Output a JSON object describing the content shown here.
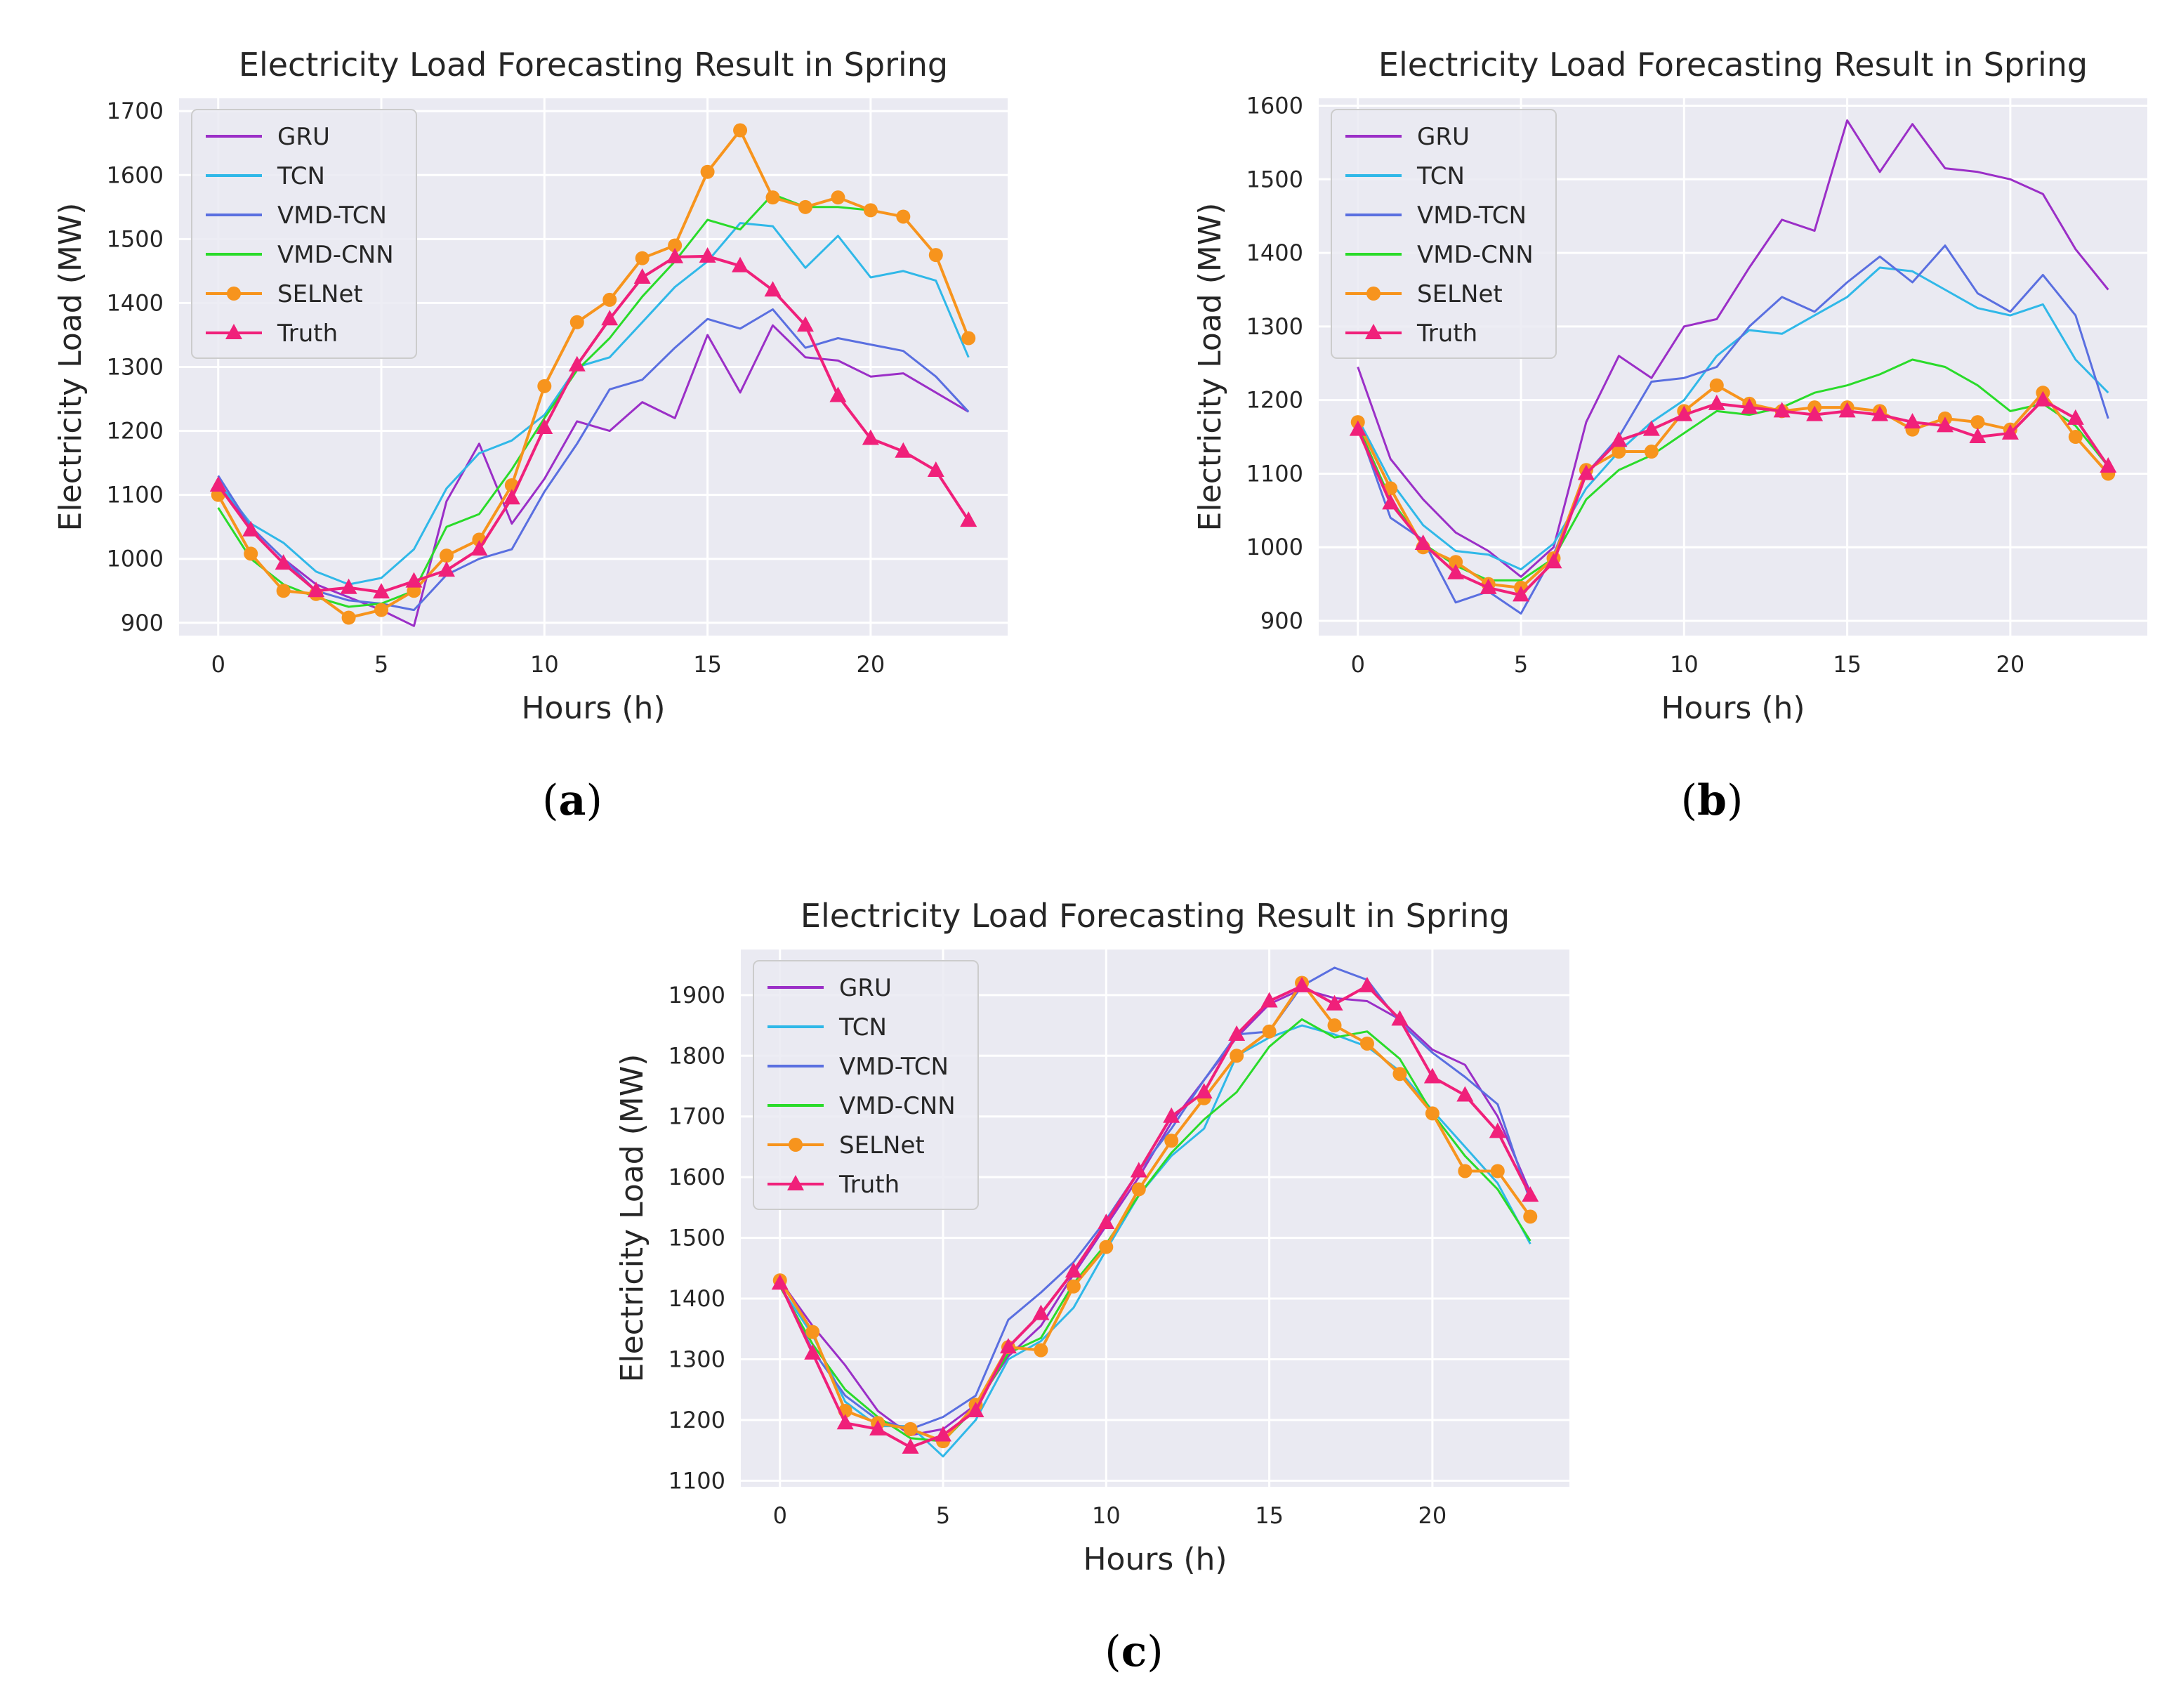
{
  "chart_data": [
    {
      "type": "line",
      "panel_label": "a",
      "title": "Electricity Load Forecasting Result in Spring",
      "xlabel": "Hours (h)",
      "ylabel": "Electricity Load (MW)",
      "xlim": [
        -1.2,
        24.2
      ],
      "ylim": [
        880,
        1720
      ],
      "xticks": [
        0,
        5,
        10,
        15,
        20
      ],
      "yticks": [
        900,
        1000,
        1100,
        1200,
        1300,
        1400,
        1500,
        1600,
        1700
      ],
      "grid": true,
      "legend": "top-left",
      "x": [
        0,
        1,
        2,
        3,
        4,
        5,
        6,
        7,
        8,
        9,
        10,
        11,
        12,
        13,
        14,
        15,
        16,
        17,
        18,
        19,
        20,
        21,
        22,
        23
      ],
      "series": [
        {
          "name": "GRU",
          "color": "#9b2fc7",
          "marker": "none",
          "values": [
            1120,
            1050,
            1000,
            960,
            940,
            920,
            895,
            1090,
            1180,
            1055,
            1125,
            1215,
            1200,
            1245,
            1220,
            1350,
            1260,
            1365,
            1315,
            1310,
            1285,
            1290,
            1260,
            1230
          ]
        },
        {
          "name": "TCN",
          "color": "#30b8e8",
          "marker": "none",
          "values": [
            1120,
            1055,
            1025,
            980,
            960,
            970,
            1015,
            1110,
            1165,
            1185,
            1225,
            1300,
            1315,
            1370,
            1425,
            1465,
            1525,
            1520,
            1455,
            1505,
            1440,
            1450,
            1435,
            1315
          ]
        },
        {
          "name": "VMD-TCN",
          "color": "#5a6fe0",
          "marker": "none",
          "values": [
            1130,
            1050,
            1000,
            950,
            935,
            930,
            920,
            975,
            1000,
            1015,
            1105,
            1180,
            1265,
            1280,
            1330,
            1375,
            1360,
            1390,
            1330,
            1345,
            1335,
            1325,
            1285,
            1230
          ]
        },
        {
          "name": "VMD-CNN",
          "color": "#2adb2a",
          "marker": "none",
          "values": [
            1080,
            1000,
            960,
            940,
            925,
            930,
            950,
            1050,
            1070,
            1140,
            1220,
            1295,
            1345,
            1410,
            1465,
            1530,
            1515,
            1570,
            1550,
            1550,
            1545,
            1535,
            1475,
            1345
          ]
        },
        {
          "name": "SELNet",
          "color": "#f7941d",
          "marker": "circle",
          "values": [
            1100,
            1008,
            950,
            945,
            908,
            920,
            950,
            1005,
            1030,
            1115,
            1270,
            1370,
            1405,
            1470,
            1490,
            1605,
            1670,
            1565,
            1550,
            1565,
            1545,
            1535,
            1475,
            1345
          ]
        },
        {
          "name": "Truth",
          "color": "#f0207a",
          "marker": "triangle",
          "values": [
            1115,
            1045,
            993,
            950,
            955,
            948,
            965,
            982,
            1015,
            1095,
            1205,
            1303,
            1375,
            1440,
            1472,
            1473,
            1458,
            1420,
            1365,
            1255,
            1188,
            1168,
            1138,
            1060
          ]
        }
      ]
    },
    {
      "type": "line",
      "panel_label": "b",
      "title": "Electricity Load Forecasting Result in Spring",
      "xlabel": "Hours (h)",
      "ylabel": "Electricity Load (MW)",
      "xlim": [
        -1.2,
        24.2
      ],
      "ylim": [
        880,
        1610
      ],
      "xticks": [
        0,
        5,
        10,
        15,
        20
      ],
      "yticks": [
        900,
        1000,
        1100,
        1200,
        1300,
        1400,
        1500,
        1600
      ],
      "grid": true,
      "legend": "top-left",
      "x": [
        0,
        1,
        2,
        3,
        4,
        5,
        6,
        7,
        8,
        9,
        10,
        11,
        12,
        13,
        14,
        15,
        16,
        17,
        18,
        19,
        20,
        21,
        22,
        23
      ],
      "series": [
        {
          "name": "GRU",
          "color": "#9b2fc7",
          "marker": "none",
          "values": [
            1245,
            1120,
            1065,
            1020,
            995,
            960,
            1000,
            1170,
            1260,
            1230,
            1300,
            1310,
            1380,
            1445,
            1430,
            1580,
            1510,
            1575,
            1515,
            1510,
            1500,
            1480,
            1405,
            1350
          ]
        },
        {
          "name": "TCN",
          "color": "#30b8e8",
          "marker": "none",
          "values": [
            1175,
            1090,
            1030,
            995,
            990,
            970,
            1005,
            1080,
            1130,
            1170,
            1200,
            1260,
            1295,
            1290,
            1315,
            1340,
            1380,
            1375,
            1350,
            1325,
            1315,
            1330,
            1255,
            1210
          ]
        },
        {
          "name": "VMD-TCN",
          "color": "#5a6fe0",
          "marker": "none",
          "values": [
            1165,
            1040,
            1010,
            925,
            940,
            910,
            990,
            1100,
            1150,
            1225,
            1230,
            1245,
            1300,
            1340,
            1320,
            1360,
            1395,
            1360,
            1410,
            1345,
            1320,
            1370,
            1315,
            1175
          ]
        },
        {
          "name": "VMD-CNN",
          "color": "#2adb2a",
          "marker": "none",
          "values": [
            1165,
            1065,
            1005,
            975,
            955,
            955,
            985,
            1065,
            1105,
            1125,
            1155,
            1185,
            1180,
            1190,
            1210,
            1220,
            1235,
            1255,
            1245,
            1220,
            1185,
            1195,
            1165,
            1110
          ]
        },
        {
          "name": "SELNet",
          "color": "#f7941d",
          "marker": "circle",
          "values": [
            1170,
            1080,
            1000,
            980,
            950,
            945,
            985,
            1105,
            1130,
            1130,
            1185,
            1220,
            1195,
            1185,
            1190,
            1190,
            1185,
            1160,
            1175,
            1170,
            1160,
            1210,
            1150,
            1100
          ]
        },
        {
          "name": "Truth",
          "color": "#f0207a",
          "marker": "triangle",
          "values": [
            1160,
            1060,
            1005,
            965,
            945,
            935,
            980,
            1100,
            1145,
            1160,
            1180,
            1195,
            1190,
            1185,
            1180,
            1185,
            1180,
            1170,
            1165,
            1150,
            1155,
            1200,
            1175,
            1110
          ]
        }
      ]
    },
    {
      "type": "line",
      "panel_label": "c",
      "title": "Electricity Load Forecasting Result in Spring",
      "xlabel": "Hours (h)",
      "ylabel": "Electricity Load (MW)",
      "xlim": [
        -1.2,
        24.2
      ],
      "ylim": [
        1090,
        1975
      ],
      "xticks": [
        0,
        5,
        10,
        15,
        20
      ],
      "yticks": [
        1100,
        1200,
        1300,
        1400,
        1500,
        1600,
        1700,
        1800,
        1900
      ],
      "grid": true,
      "legend": "top-left",
      "x": [
        0,
        1,
        2,
        3,
        4,
        5,
        6,
        7,
        8,
        9,
        10,
        11,
        12,
        13,
        14,
        15,
        16,
        17,
        18,
        19,
        20,
        21,
        22,
        23
      ],
      "series": [
        {
          "name": "GRU",
          "color": "#9b2fc7",
          "marker": "none",
          "values": [
            1430,
            1355,
            1290,
            1215,
            1175,
            1185,
            1225,
            1305,
            1355,
            1440,
            1520,
            1600,
            1690,
            1760,
            1830,
            1885,
            1910,
            1895,
            1890,
            1860,
            1810,
            1785,
            1700,
            1575
          ]
        },
        {
          "name": "TCN",
          "color": "#30b8e8",
          "marker": "none",
          "values": [
            1420,
            1340,
            1230,
            1190,
            1190,
            1140,
            1200,
            1300,
            1330,
            1385,
            1480,
            1570,
            1635,
            1680,
            1800,
            1830,
            1850,
            1835,
            1815,
            1775,
            1710,
            1650,
            1590,
            1490
          ]
        },
        {
          "name": "VMD-TCN",
          "color": "#5a6fe0",
          "marker": "none",
          "values": [
            1425,
            1315,
            1240,
            1200,
            1185,
            1205,
            1240,
            1365,
            1410,
            1460,
            1530,
            1610,
            1680,
            1760,
            1835,
            1840,
            1915,
            1945,
            1925,
            1855,
            1805,
            1765,
            1720,
            1560
          ]
        },
        {
          "name": "VMD-CNN",
          "color": "#2adb2a",
          "marker": "none",
          "values": [
            1420,
            1325,
            1250,
            1205,
            1170,
            1165,
            1220,
            1310,
            1335,
            1425,
            1490,
            1570,
            1640,
            1695,
            1740,
            1815,
            1860,
            1830,
            1840,
            1795,
            1705,
            1635,
            1580,
            1495
          ]
        },
        {
          "name": "SELNet",
          "color": "#f7941d",
          "marker": "circle",
          "values": [
            1430,
            1345,
            1215,
            1195,
            1185,
            1165,
            1225,
            1320,
            1315,
            1420,
            1485,
            1580,
            1660,
            1730,
            1800,
            1840,
            1920,
            1850,
            1820,
            1770,
            1705,
            1610,
            1610,
            1535
          ]
        },
        {
          "name": "Truth",
          "color": "#f0207a",
          "marker": "triangle",
          "values": [
            1425,
            1310,
            1195,
            1185,
            1155,
            1175,
            1215,
            1320,
            1375,
            1445,
            1525,
            1610,
            1700,
            1740,
            1835,
            1890,
            1915,
            1885,
            1915,
            1860,
            1765,
            1735,
            1675,
            1570
          ]
        }
      ]
    }
  ]
}
